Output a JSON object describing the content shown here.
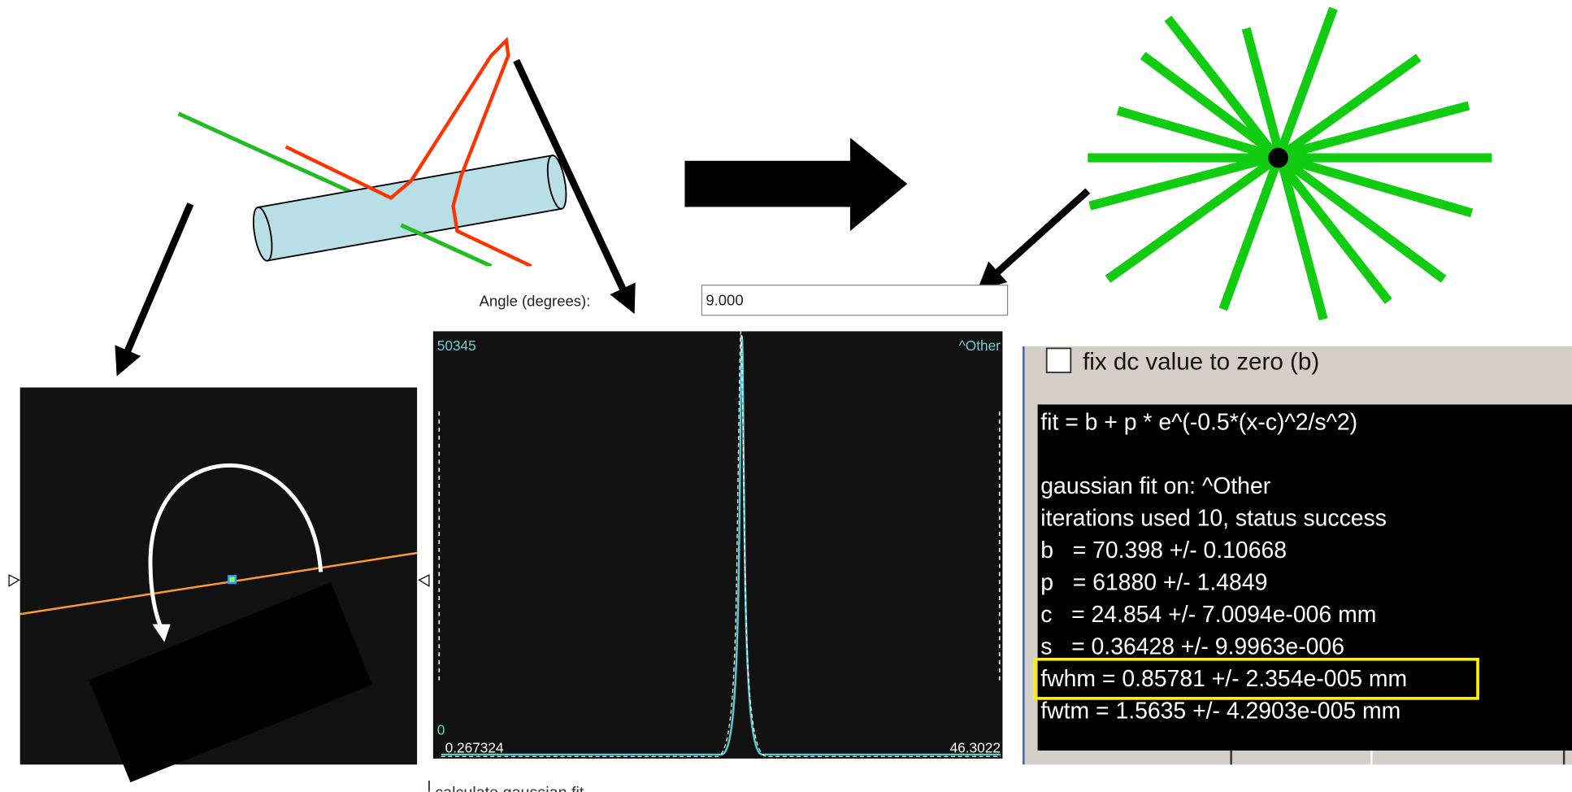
{
  "angle_field": {
    "label": "Angle (degrees):",
    "value": "9.000"
  },
  "plot": {
    "y_max": "50345",
    "series_name": "^Other",
    "y_min": "0",
    "x_min": "0.267324",
    "x_max": "46.3022"
  },
  "fit_panel": {
    "checkbox_label": "fix dc value to zero (b)",
    "formula": "fit = b + p * e^(-0.5*(x-c)^2/s^2)",
    "lines": [
      "gaussian fit on: ^Other",
      "iterations used 10, status success",
      "b   = 70.398 +/- 0.10668",
      "p   = 61880 +/- 1.4849",
      "c   = 24.854 +/- 7.0094e-006 mm",
      "s   = 0.36428 +/- 9.9963e-006",
      "fwhm = 0.85781 +/- 2.354e-005 mm",
      "fwtm = 1.5635 +/- 4.2903e-005 mm"
    ]
  },
  "footer": {
    "checkbox_label": "calculate gaussian fit"
  }
}
